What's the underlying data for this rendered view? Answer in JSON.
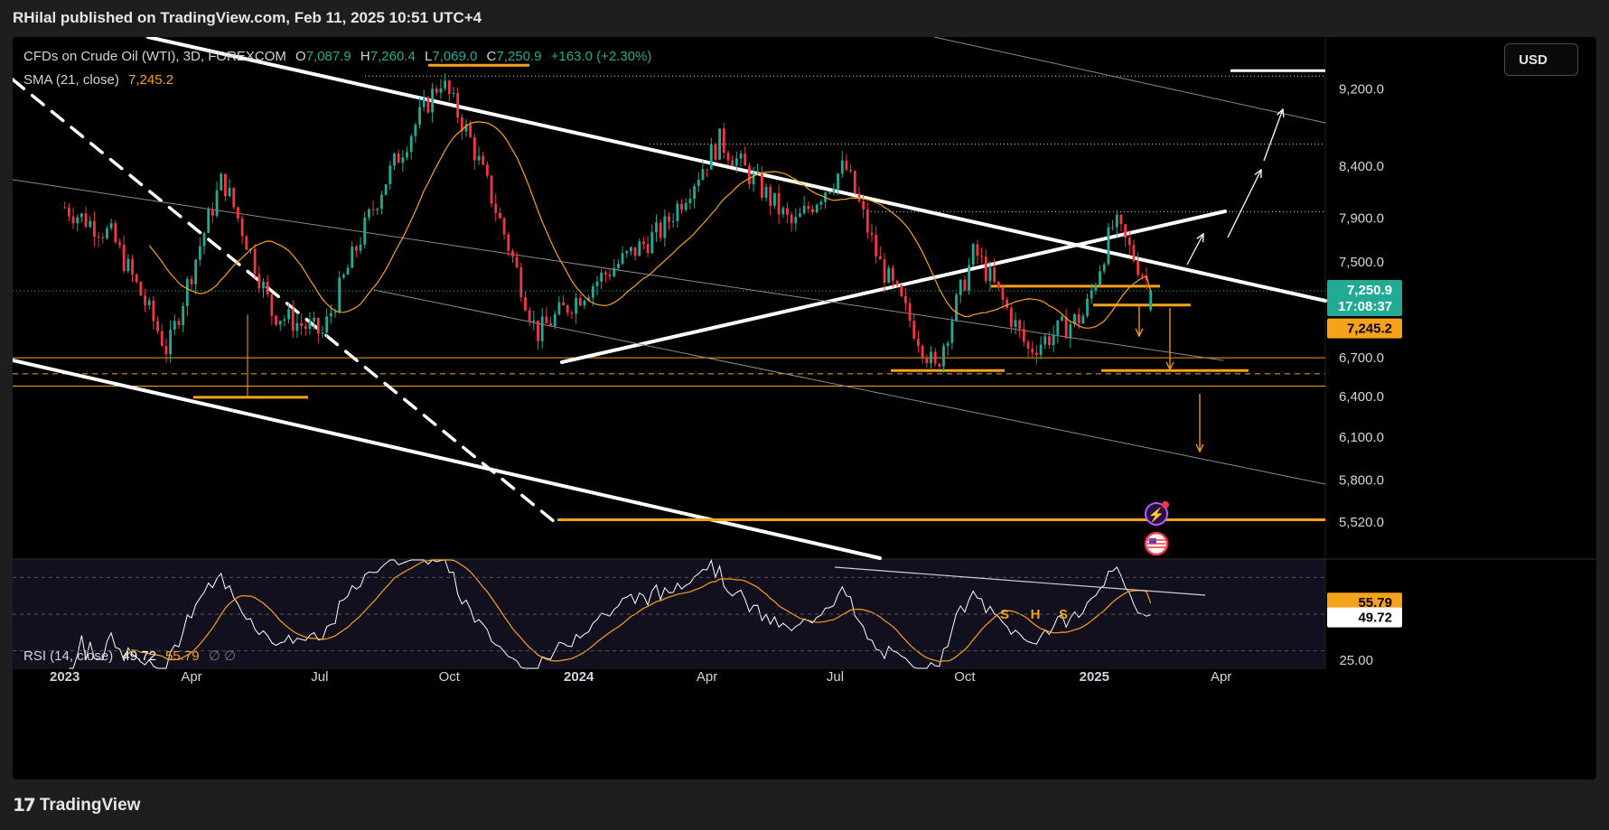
{
  "header": {
    "publisher": "RHilal published on TradingView.com, Feb 11, 2025 10:51 UTC+4"
  },
  "legend": {
    "symbol": "CFDs on Crude Oil (WTI), 3D, FOREXCOM",
    "open_label": "O",
    "open": "7,087.9",
    "high_label": "H",
    "high": "7,260.4",
    "low_label": "L",
    "low": "7,069.0",
    "close_label": "C",
    "close": "7,250.9",
    "change": "+163.0 (+2.30%)",
    "sma_label": "SMA (21, close)",
    "sma_value": "7,245.2",
    "rsi_label": "RSI (14, close)",
    "rsi_value": "49.72",
    "rsi_ma_value": "55.79",
    "rsi_extra": "∅  ∅"
  },
  "currency": "USD",
  "footer": {
    "logo_text": "TradingView",
    "logo_icon": "tradingview-logo-icon"
  },
  "colors": {
    "up": "#22ab94",
    "down": "#f23645",
    "sma": "#f7a21b",
    "rsi": "#ffffff",
    "trend": "#ffffff",
    "level": "#f7a21b",
    "background": "#000000"
  },
  "chart_data": [
    {
      "type": "candlestick",
      "title": "CFDs on Crude Oil (WTI), 3D, FOREXCOM",
      "ylim": [
        5290,
        9780
      ],
      "y_scale": "log",
      "price_ticks": [
        "9,200.0",
        "8,400.0",
        "7,900.0",
        "7,500.0",
        "6,700.0",
        "6,400.0",
        "6,100.0",
        "5,800.0",
        "5,520.0"
      ],
      "time_ticks": [
        "2023",
        "Apr",
        "Jul",
        "Oct",
        "2024",
        "Apr",
        "Jul",
        "Oct",
        "2025",
        "Apr"
      ],
      "current_price_tag": {
        "price": "7,250.9",
        "countdown": "17:08:37"
      },
      "sma_tag": "7,245.2",
      "sma_label": "SMA (21, close)",
      "path_x": [
        "2023-01-01",
        "2023-02-03",
        "2023-03-15",
        "2023-04-23",
        "2023-05-28",
        "2023-07-03",
        "2023-08-15",
        "2023-09-25",
        "2023-10-15",
        "2023-12-02",
        "2024-01-15",
        "2024-03-01",
        "2024-04-10",
        "2024-06-01",
        "2024-07-08",
        "2024-08-01",
        "2024-09-10",
        "2024-10-08",
        "2024-11-15",
        "2024-12-25",
        "2025-01-15",
        "2025-02-11"
      ],
      "path_close": [
        8000,
        7740,
        6750,
        8280,
        7070,
        6890,
        8210,
        9300,
        8700,
        6890,
        7350,
        7800,
        8650,
        7820,
        8400,
        7500,
        6600,
        7600,
        6760,
        7050,
        7860,
        7250.9
      ],
      "horizontal_levels": [
        6700,
        6575,
        6480
      ],
      "horizontal_levels_dashed": [
        6575
      ]
    },
    {
      "type": "line",
      "title": "RSI (14, close)",
      "ylim": [
        20,
        80
      ],
      "ticks": [
        "25.00"
      ],
      "series": [
        {
          "name": "RSI (14, close)",
          "last": "49.72"
        },
        {
          "name": "RSI-based MA",
          "last": "55.79"
        }
      ],
      "annotations": [
        "S",
        "H",
        "S"
      ]
    }
  ]
}
